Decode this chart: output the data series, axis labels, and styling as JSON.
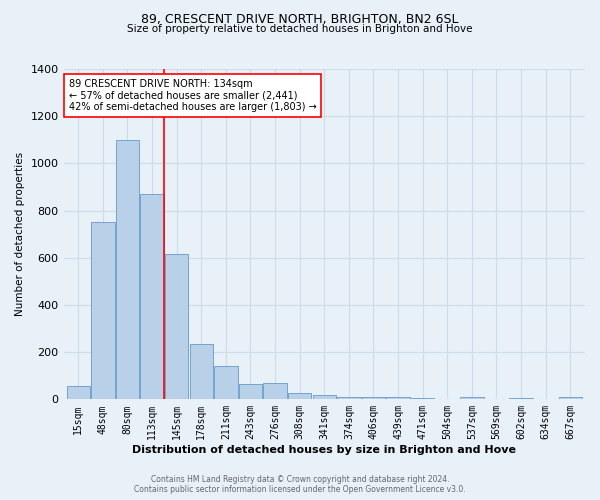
{
  "title": "89, CRESCENT DRIVE NORTH, BRIGHTON, BN2 6SL",
  "subtitle": "Size of property relative to detached houses in Brighton and Hove",
  "xlabel": "Distribution of detached houses by size in Brighton and Hove",
  "ylabel": "Number of detached properties",
  "footer_line1": "Contains HM Land Registry data © Crown copyright and database right 2024.",
  "footer_line2": "Contains public sector information licensed under the Open Government Licence v3.0.",
  "annotation_line1": "89 CRESCENT DRIVE NORTH: 134sqm",
  "annotation_line2": "← 57% of detached houses are smaller (2,441)",
  "annotation_line3": "42% of semi-detached houses are larger (1,803) →",
  "bar_labels": [
    "15sqm",
    "48sqm",
    "80sqm",
    "113sqm",
    "145sqm",
    "178sqm",
    "211sqm",
    "243sqm",
    "276sqm",
    "308sqm",
    "341sqm",
    "374sqm",
    "406sqm",
    "439sqm",
    "471sqm",
    "504sqm",
    "537sqm",
    "569sqm",
    "602sqm",
    "634sqm",
    "667sqm"
  ],
  "bar_heights": [
    55,
    750,
    1100,
    870,
    615,
    235,
    140,
    65,
    70,
    25,
    20,
    12,
    10,
    8,
    5,
    0,
    10,
    0,
    5,
    0,
    8
  ],
  "bar_color": "#b8d0e8",
  "bar_edge_color": "#6699cc",
  "vline_x": 3.5,
  "vline_color": "red",
  "annotation_box_color": "white",
  "annotation_box_edge": "red",
  "ylim": [
    0,
    1400
  ],
  "yticks": [
    0,
    200,
    400,
    600,
    800,
    1000,
    1200,
    1400
  ],
  "grid_color": "#ccdde8",
  "bg_color": "#e8f0f8",
  "title_fontsize": 9,
  "subtitle_fontsize": 7.5,
  "ylabel_fontsize": 7.5,
  "xlabel_fontsize": 8,
  "tick_fontsize": 7,
  "footer_fontsize": 5.5,
  "annotation_fontsize": 7
}
